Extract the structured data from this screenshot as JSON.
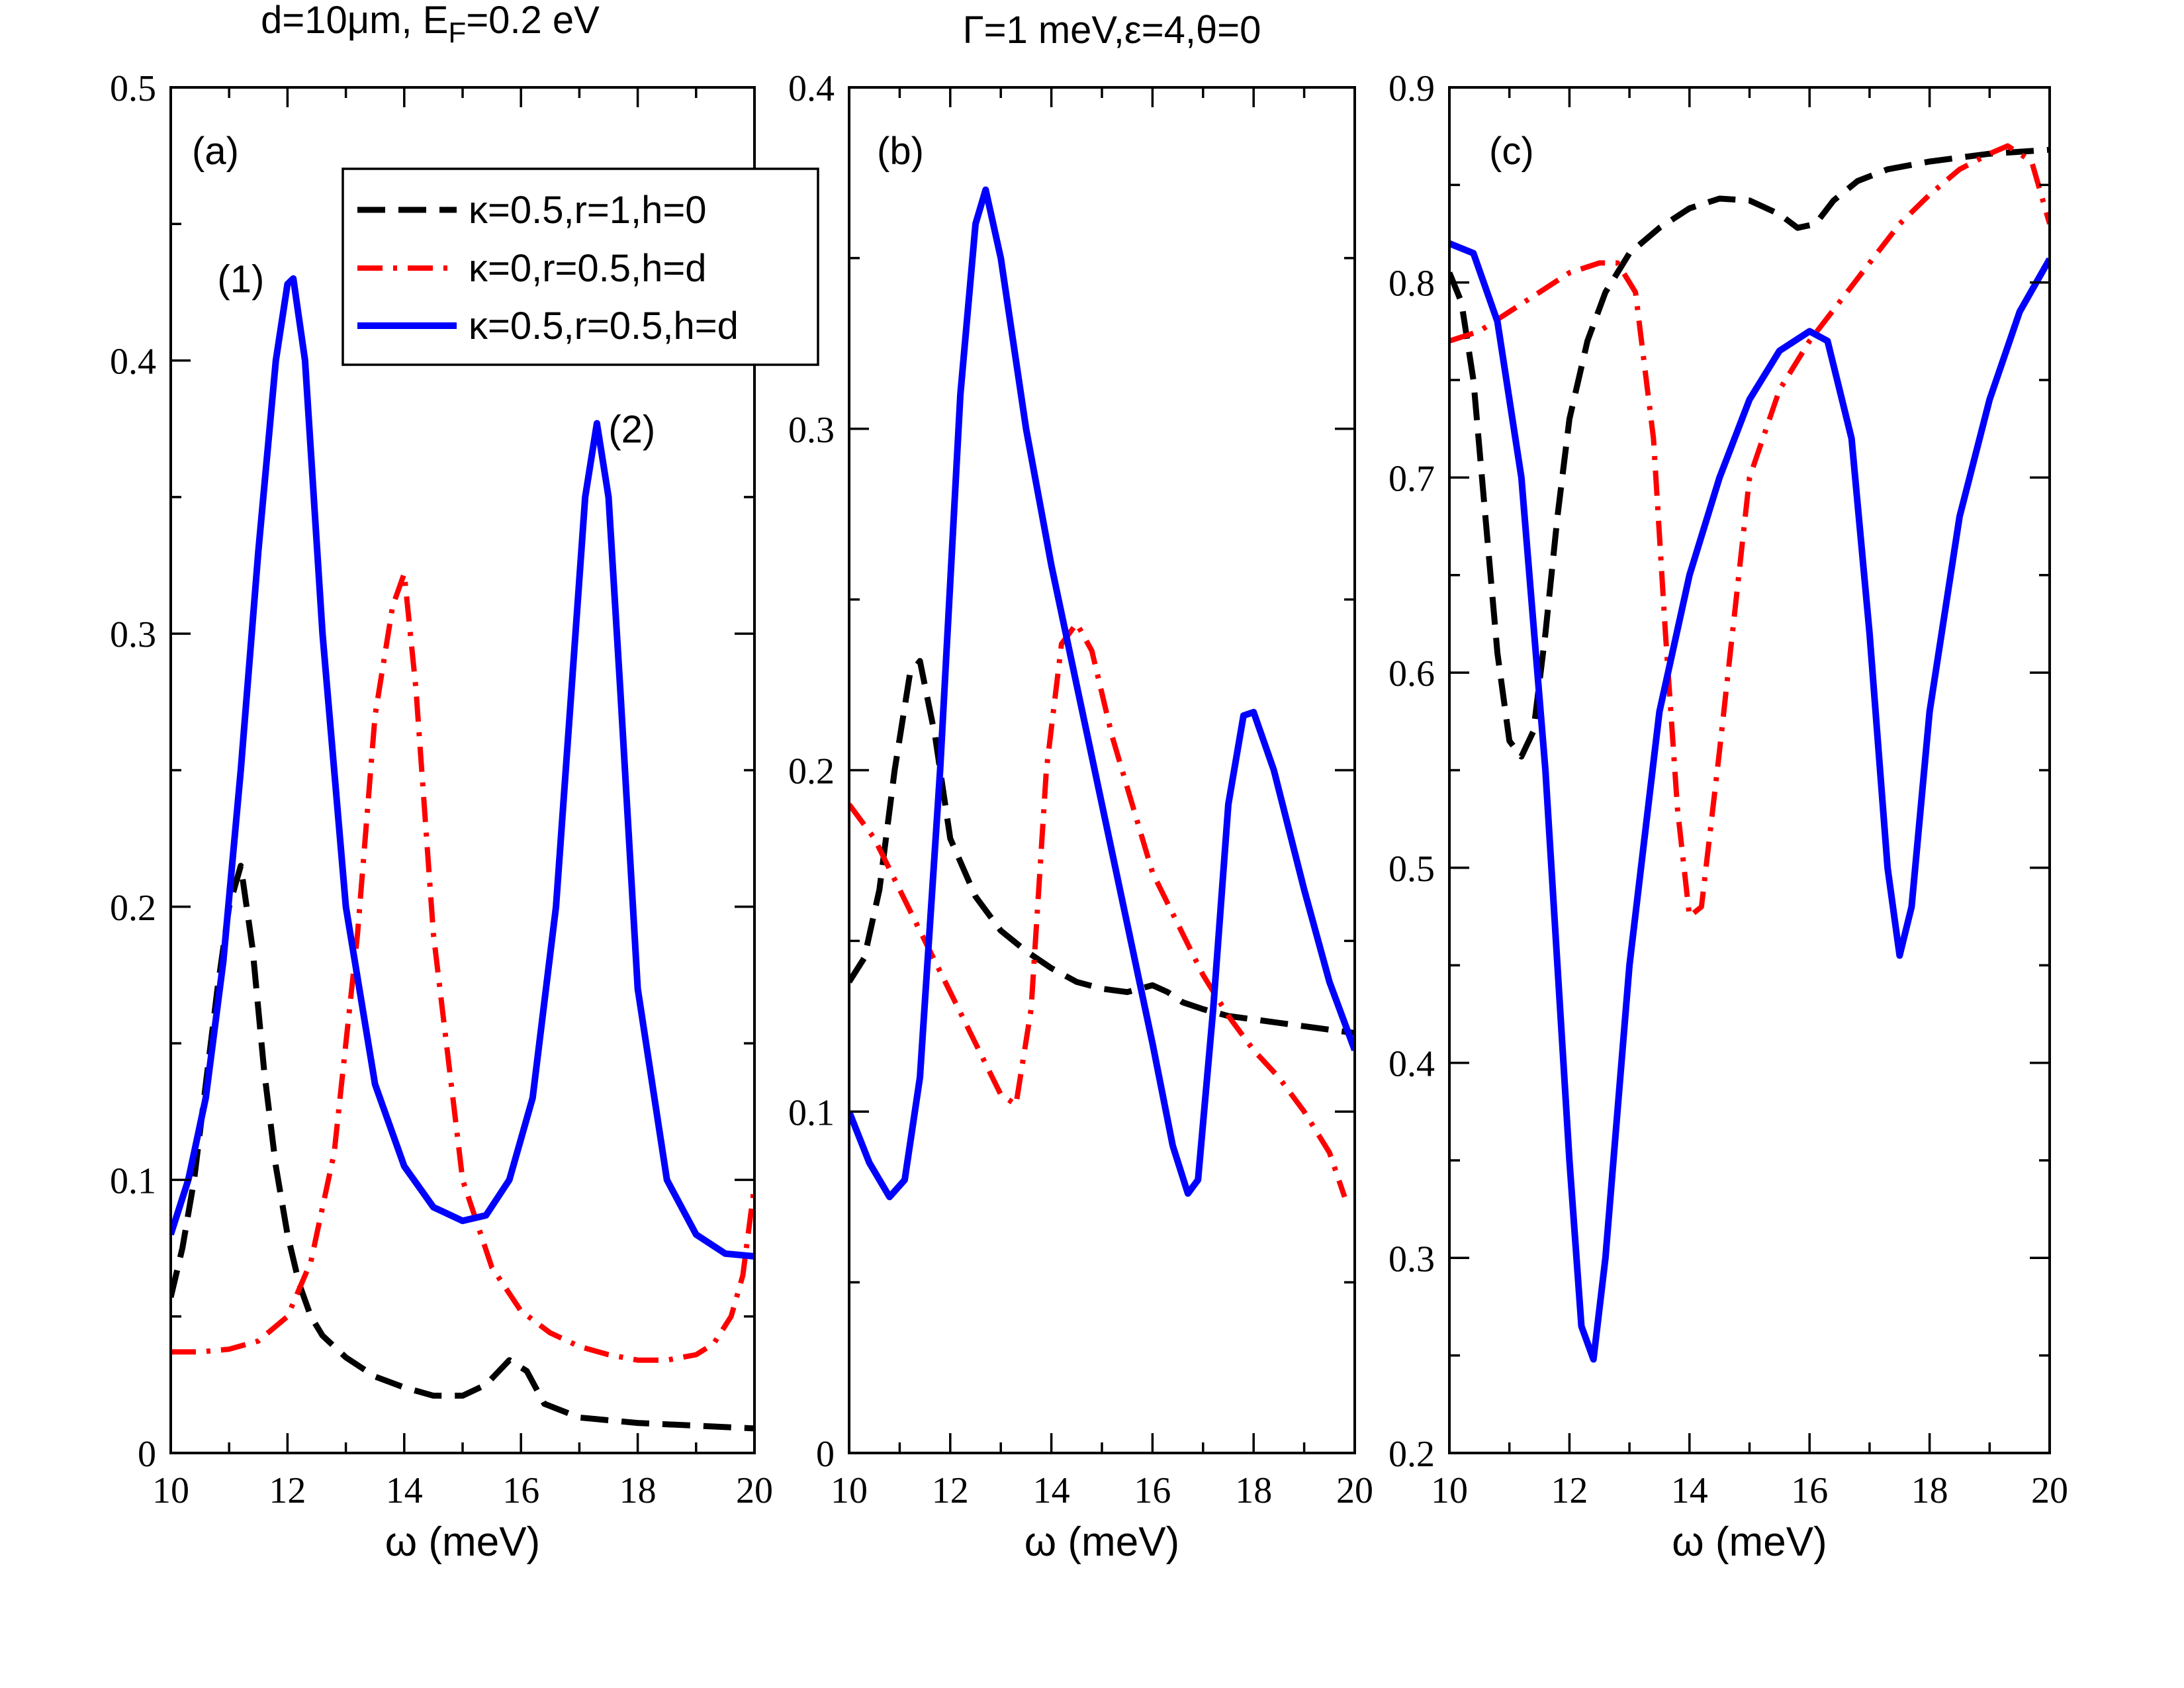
{
  "figure": {
    "top_labels": [
      "d=10μm, E_F=0.2 eV",
      "Γ=1 meV,ε=4,θ=0"
    ],
    "legend": [
      {
        "label": "κ=0.5,r=1,h=0",
        "series": 0
      },
      {
        "label": "κ=0,r=0.5,h=d",
        "series": 1
      },
      {
        "label": "κ=0.5,r=0.5,h=d",
        "series": 2
      }
    ],
    "series_styles": [
      {
        "name": "κ=0.5,r=1,h=0",
        "color": "#000000",
        "dash": "dashed"
      },
      {
        "name": "κ=0,r=0.5,h=d",
        "color": "#ff0000",
        "dash": "dash-dot"
      },
      {
        "name": "κ=0.5,r=0.5,h=d",
        "color": "#0000ff",
        "dash": "solid"
      }
    ]
  },
  "chart_data": [
    {
      "type": "line",
      "panel_label": "(a)",
      "title": "",
      "xlabel": "ω (meV)",
      "ylabel": "",
      "xlim": [
        10,
        20
      ],
      "ylim": [
        0,
        0.5
      ],
      "xticks": [
        10,
        12,
        14,
        16,
        18,
        20
      ],
      "xtick_labels": [
        "10",
        "12",
        "14",
        "16",
        "18",
        "20"
      ],
      "yticks": [
        0,
        0.1,
        0.2,
        0.3,
        0.4,
        0.5
      ],
      "ytick_labels": [
        "0",
        "0.1",
        "0.2",
        "0.3",
        "0.4",
        "0.5"
      ],
      "annotations": [
        {
          "text": "(1)",
          "x": 11.2,
          "y": 0.425
        },
        {
          "text": "(2)",
          "x": 17.9,
          "y": 0.37
        }
      ],
      "series": [
        {
          "name": "κ=0.5,r=1,h=0",
          "x": [
            10,
            10.2,
            10.4,
            10.6,
            10.8,
            11.0,
            11.2,
            11.4,
            11.6,
            11.8,
            12.0,
            12.2,
            12.4,
            12.6,
            13.0,
            13.5,
            14.0,
            14.5,
            15.0,
            15.4,
            15.8,
            16.1,
            16.4,
            17.0,
            18.0,
            19.0,
            20.0
          ],
          "y": [
            0.057,
            0.075,
            0.1,
            0.135,
            0.17,
            0.2,
            0.215,
            0.185,
            0.14,
            0.105,
            0.08,
            0.062,
            0.05,
            0.043,
            0.035,
            0.028,
            0.024,
            0.021,
            0.021,
            0.025,
            0.034,
            0.03,
            0.018,
            0.013,
            0.011,
            0.01,
            0.009
          ]
        },
        {
          "name": "κ=0,r=0.5,h=d",
          "x": [
            10,
            10.5,
            11.0,
            11.5,
            12.0,
            12.4,
            12.8,
            13.2,
            13.5,
            13.8,
            14.0,
            14.2,
            14.5,
            15.0,
            15.5,
            16.0,
            16.5,
            17.0,
            17.5,
            18.0,
            18.5,
            19.0,
            19.3,
            19.6,
            19.8,
            20.0
          ],
          "y": [
            0.037,
            0.037,
            0.038,
            0.041,
            0.05,
            0.07,
            0.11,
            0.19,
            0.27,
            0.31,
            0.322,
            0.28,
            0.19,
            0.1,
            0.068,
            0.052,
            0.044,
            0.039,
            0.036,
            0.034,
            0.034,
            0.036,
            0.04,
            0.05,
            0.065,
            0.098
          ]
        },
        {
          "name": "κ=0.5,r=0.5,h=d",
          "x": [
            10,
            10.3,
            10.6,
            10.9,
            11.2,
            11.5,
            11.8,
            12.0,
            12.1,
            12.3,
            12.6,
            13.0,
            13.5,
            14.0,
            14.5,
            15.0,
            15.4,
            15.8,
            16.2,
            16.6,
            16.9,
            17.1,
            17.3,
            17.5,
            17.7,
            18.0,
            18.5,
            19.0,
            19.5,
            20.0
          ],
          "y": [
            0.08,
            0.1,
            0.13,
            0.18,
            0.25,
            0.33,
            0.4,
            0.428,
            0.43,
            0.4,
            0.3,
            0.2,
            0.135,
            0.105,
            0.09,
            0.085,
            0.087,
            0.1,
            0.13,
            0.2,
            0.29,
            0.35,
            0.377,
            0.35,
            0.28,
            0.17,
            0.1,
            0.08,
            0.073,
            0.072
          ]
        }
      ]
    },
    {
      "type": "line",
      "panel_label": "(b)",
      "title": "",
      "xlabel": "ω (meV)",
      "ylabel": "",
      "xlim": [
        10,
        20
      ],
      "ylim": [
        0,
        0.4
      ],
      "xticks": [
        10,
        12,
        14,
        16,
        18,
        20
      ],
      "xtick_labels": [
        "10",
        "12",
        "14",
        "16",
        "18",
        "20"
      ],
      "yticks": [
        0,
        0.1,
        0.2,
        0.3,
        0.4
      ],
      "ytick_labels": [
        "0",
        "0.1",
        "0.2",
        "0.3",
        "0.4"
      ],
      "series": [
        {
          "name": "κ=0.5,r=1,h=0",
          "x": [
            10,
            10.3,
            10.6,
            10.9,
            11.2,
            11.4,
            11.7,
            12.0,
            12.5,
            13.0,
            13.5,
            14.0,
            14.5,
            15.0,
            15.5,
            16.0,
            16.3,
            16.6,
            17.0,
            17.5,
            18.0,
            18.5,
            19.0,
            19.5,
            20.0
          ],
          "y": [
            0.138,
            0.145,
            0.165,
            0.2,
            0.228,
            0.232,
            0.21,
            0.18,
            0.163,
            0.153,
            0.147,
            0.142,
            0.138,
            0.136,
            0.135,
            0.137,
            0.135,
            0.132,
            0.13,
            0.128,
            0.127,
            0.126,
            0.125,
            0.124,
            0.123
          ]
        },
        {
          "name": "κ=0,r=0.5,h=d",
          "x": [
            10,
            10.5,
            11.0,
            11.5,
            12.0,
            12.5,
            13.0,
            13.3,
            13.6,
            13.9,
            14.2,
            14.5,
            14.8,
            15.2,
            15.6,
            16.0,
            16.5,
            17.0,
            17.5,
            18.0,
            18.5,
            19.0,
            19.5,
            19.8
          ],
          "y": [
            0.19,
            0.18,
            0.165,
            0.15,
            0.135,
            0.12,
            0.105,
            0.102,
            0.13,
            0.2,
            0.237,
            0.243,
            0.235,
            0.21,
            0.19,
            0.17,
            0.155,
            0.14,
            0.128,
            0.118,
            0.11,
            0.1,
            0.088,
            0.075
          ]
        },
        {
          "name": "κ=0.5,r=0.5,h=d",
          "x": [
            10,
            10.4,
            10.8,
            11.1,
            11.4,
            11.8,
            12.2,
            12.5,
            12.7,
            13.0,
            13.5,
            14.0,
            14.5,
            15.0,
            15.5,
            16.0,
            16.4,
            16.7,
            16.9,
            17.2,
            17.5,
            17.8,
            18.0,
            18.4,
            19.0,
            19.5,
            20.0
          ],
          "y": [
            0.1,
            0.085,
            0.075,
            0.08,
            0.11,
            0.2,
            0.31,
            0.36,
            0.37,
            0.35,
            0.3,
            0.26,
            0.225,
            0.19,
            0.155,
            0.12,
            0.09,
            0.076,
            0.08,
            0.13,
            0.19,
            0.216,
            0.217,
            0.2,
            0.165,
            0.138,
            0.118
          ]
        }
      ]
    },
    {
      "type": "line",
      "panel_label": "(c)",
      "title": "",
      "xlabel": "ω (meV)",
      "ylabel": "",
      "xlim": [
        10,
        20
      ],
      "ylim": [
        0.2,
        0.9
      ],
      "xticks": [
        10,
        12,
        14,
        16,
        18,
        20
      ],
      "xtick_labels": [
        "10",
        "12",
        "14",
        "16",
        "18",
        "20"
      ],
      "yticks": [
        0.2,
        0.3,
        0.4,
        0.5,
        0.6,
        0.7,
        0.8,
        0.9
      ],
      "ytick_labels": [
        "0.2",
        "0.3",
        "0.4",
        "0.5",
        "0.6",
        "0.7",
        "0.8",
        "0.9"
      ],
      "series": [
        {
          "name": "κ=0.5,r=1,h=0",
          "x": [
            10,
            10.2,
            10.4,
            10.6,
            10.8,
            11.0,
            11.2,
            11.4,
            11.6,
            11.8,
            12.0,
            12.3,
            12.6,
            13.0,
            13.5,
            14.0,
            14.5,
            15.0,
            15.5,
            15.8,
            16.1,
            16.4,
            16.8,
            17.3,
            18.0,
            18.5,
            19.0,
            19.5,
            20.0
          ],
          "y": [
            0.805,
            0.79,
            0.75,
            0.68,
            0.61,
            0.565,
            0.557,
            0.57,
            0.62,
            0.68,
            0.73,
            0.77,
            0.795,
            0.815,
            0.828,
            0.838,
            0.843,
            0.842,
            0.835,
            0.828,
            0.83,
            0.842,
            0.852,
            0.858,
            0.862,
            0.864,
            0.866,
            0.867,
            0.868
          ]
        },
        {
          "name": "κ=0,r=0.5,h=d",
          "x": [
            10,
            10.5,
            11.0,
            11.5,
            12.0,
            12.5,
            12.8,
            13.1,
            13.4,
            13.6,
            13.8,
            14.0,
            14.2,
            14.5,
            15.0,
            15.5,
            16.0,
            16.5,
            17.0,
            17.5,
            18.0,
            18.5,
            19.0,
            19.3,
            19.7,
            20.0
          ],
          "y": [
            0.77,
            0.775,
            0.785,
            0.795,
            0.805,
            0.81,
            0.81,
            0.795,
            0.72,
            0.62,
            0.53,
            0.475,
            0.48,
            0.56,
            0.7,
            0.745,
            0.77,
            0.79,
            0.81,
            0.83,
            0.845,
            0.858,
            0.866,
            0.87,
            0.862,
            0.83
          ]
        },
        {
          "name": "κ=0.5,r=0.5,h=d",
          "x": [
            10,
            10.4,
            10.8,
            11.2,
            11.6,
            12.0,
            12.2,
            12.4,
            12.6,
            13.0,
            13.5,
            14.0,
            14.5,
            15.0,
            15.5,
            16.0,
            16.3,
            16.7,
            17.0,
            17.3,
            17.5,
            17.7,
            18.0,
            18.5,
            19.0,
            19.5,
            20.0
          ],
          "y": [
            0.82,
            0.815,
            0.78,
            0.7,
            0.55,
            0.35,
            0.265,
            0.248,
            0.3,
            0.45,
            0.58,
            0.65,
            0.7,
            0.74,
            0.765,
            0.775,
            0.77,
            0.72,
            0.62,
            0.5,
            0.455,
            0.48,
            0.58,
            0.68,
            0.74,
            0.785,
            0.812
          ]
        }
      ]
    }
  ]
}
